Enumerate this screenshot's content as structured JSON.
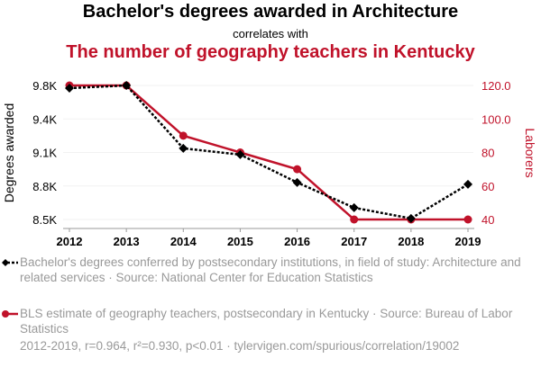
{
  "chart_data": {
    "type": "line",
    "title": "Bachelor's degrees awarded in Architecture",
    "subtitle": "correlates with",
    "title2": "The number of geography teachers in Kentucky",
    "x": [
      2012,
      2013,
      2014,
      2015,
      2016,
      2017,
      2018,
      2019
    ],
    "xticks": [
      "2012",
      "2013",
      "2014",
      "2015",
      "2016",
      "2017",
      "2018",
      "2019"
    ],
    "ylabel": "Degrees awarded",
    "ylabel_right": "Laborers",
    "ylim": [
      8500,
      9800
    ],
    "yticks": [
      8500,
      8825,
      9150,
      9475,
      9800
    ],
    "ytick_labels": [
      "8.5K",
      "8.8K",
      "9.1K",
      "9.4K",
      "9.8K"
    ],
    "ylim_right": [
      40,
      120
    ],
    "yticks_right": [
      40,
      60,
      80,
      100,
      120
    ],
    "ytick_labels_right": [
      "40",
      "60",
      "80",
      "100.0",
      "120.0"
    ],
    "series": [
      {
        "name": "Bachelor's degrees conferred by postsecondary institutions, in field of study: Architecture and related services · Source: National Center for Education Statistics",
        "axis": "left",
        "color": "#000000",
        "values": [
          9774,
          9800,
          9190,
          9129,
          8859,
          8614,
          8510,
          8841
        ]
      },
      {
        "name": "BLS estimate of geography teachers, postsecondary in Kentucky · Source: Bureau of Labor Statistics",
        "axis": "right",
        "color": "#c0122a",
        "values": [
          120,
          120,
          90,
          80,
          70,
          40,
          40,
          40
        ]
      }
    ],
    "footer": "2012-2019, r=0.964, r²=0.930, p<0.01 · tylervigen.com/spurious/correlation/19002"
  }
}
